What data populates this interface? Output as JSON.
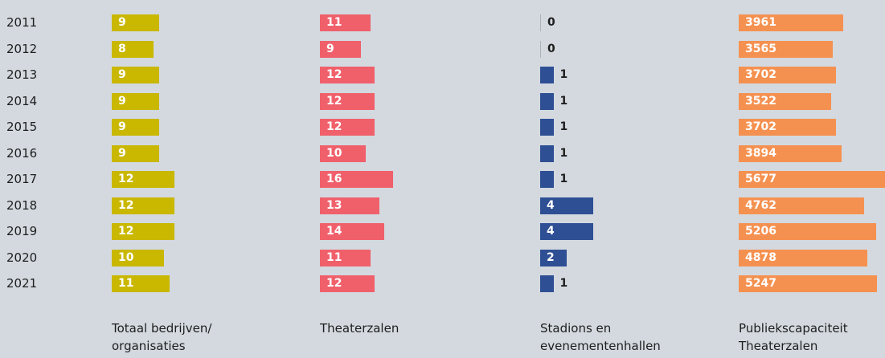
{
  "chart_data": {
    "type": "bar",
    "orientation": "horizontal",
    "categories": [
      "2011",
      "2012",
      "2013",
      "2014",
      "2015",
      "2016",
      "2017",
      "2018",
      "2019",
      "2020",
      "2021"
    ],
    "series": [
      {
        "name": "Totaal bedrijven/ organisaties",
        "color": "#c9b700",
        "xlim": [
          0,
          28
        ],
        "values": [
          9,
          8,
          9,
          9,
          9,
          9,
          12,
          12,
          12,
          10,
          11
        ]
      },
      {
        "name": "Theaterzalen",
        "color": "#f0606b",
        "xlim": [
          0,
          32
        ],
        "values": [
          11,
          9,
          12,
          12,
          12,
          10,
          16,
          13,
          14,
          11,
          12
        ]
      },
      {
        "name": "Stadions en evenementenhallen",
        "color": "#2e4f94",
        "xlim": [
          0,
          11
        ],
        "values": [
          0,
          0,
          1,
          1,
          1,
          1,
          1,
          4,
          4,
          2,
          1
        ]
      },
      {
        "name": "Publiekscapaciteit Theaterzalen",
        "color": "#f59150",
        "xlim": [
          0,
          5550
        ],
        "values": [
          3961,
          3565,
          3702,
          3522,
          3702,
          3894,
          5677,
          4762,
          5206,
          4878,
          5247
        ]
      }
    ]
  }
}
